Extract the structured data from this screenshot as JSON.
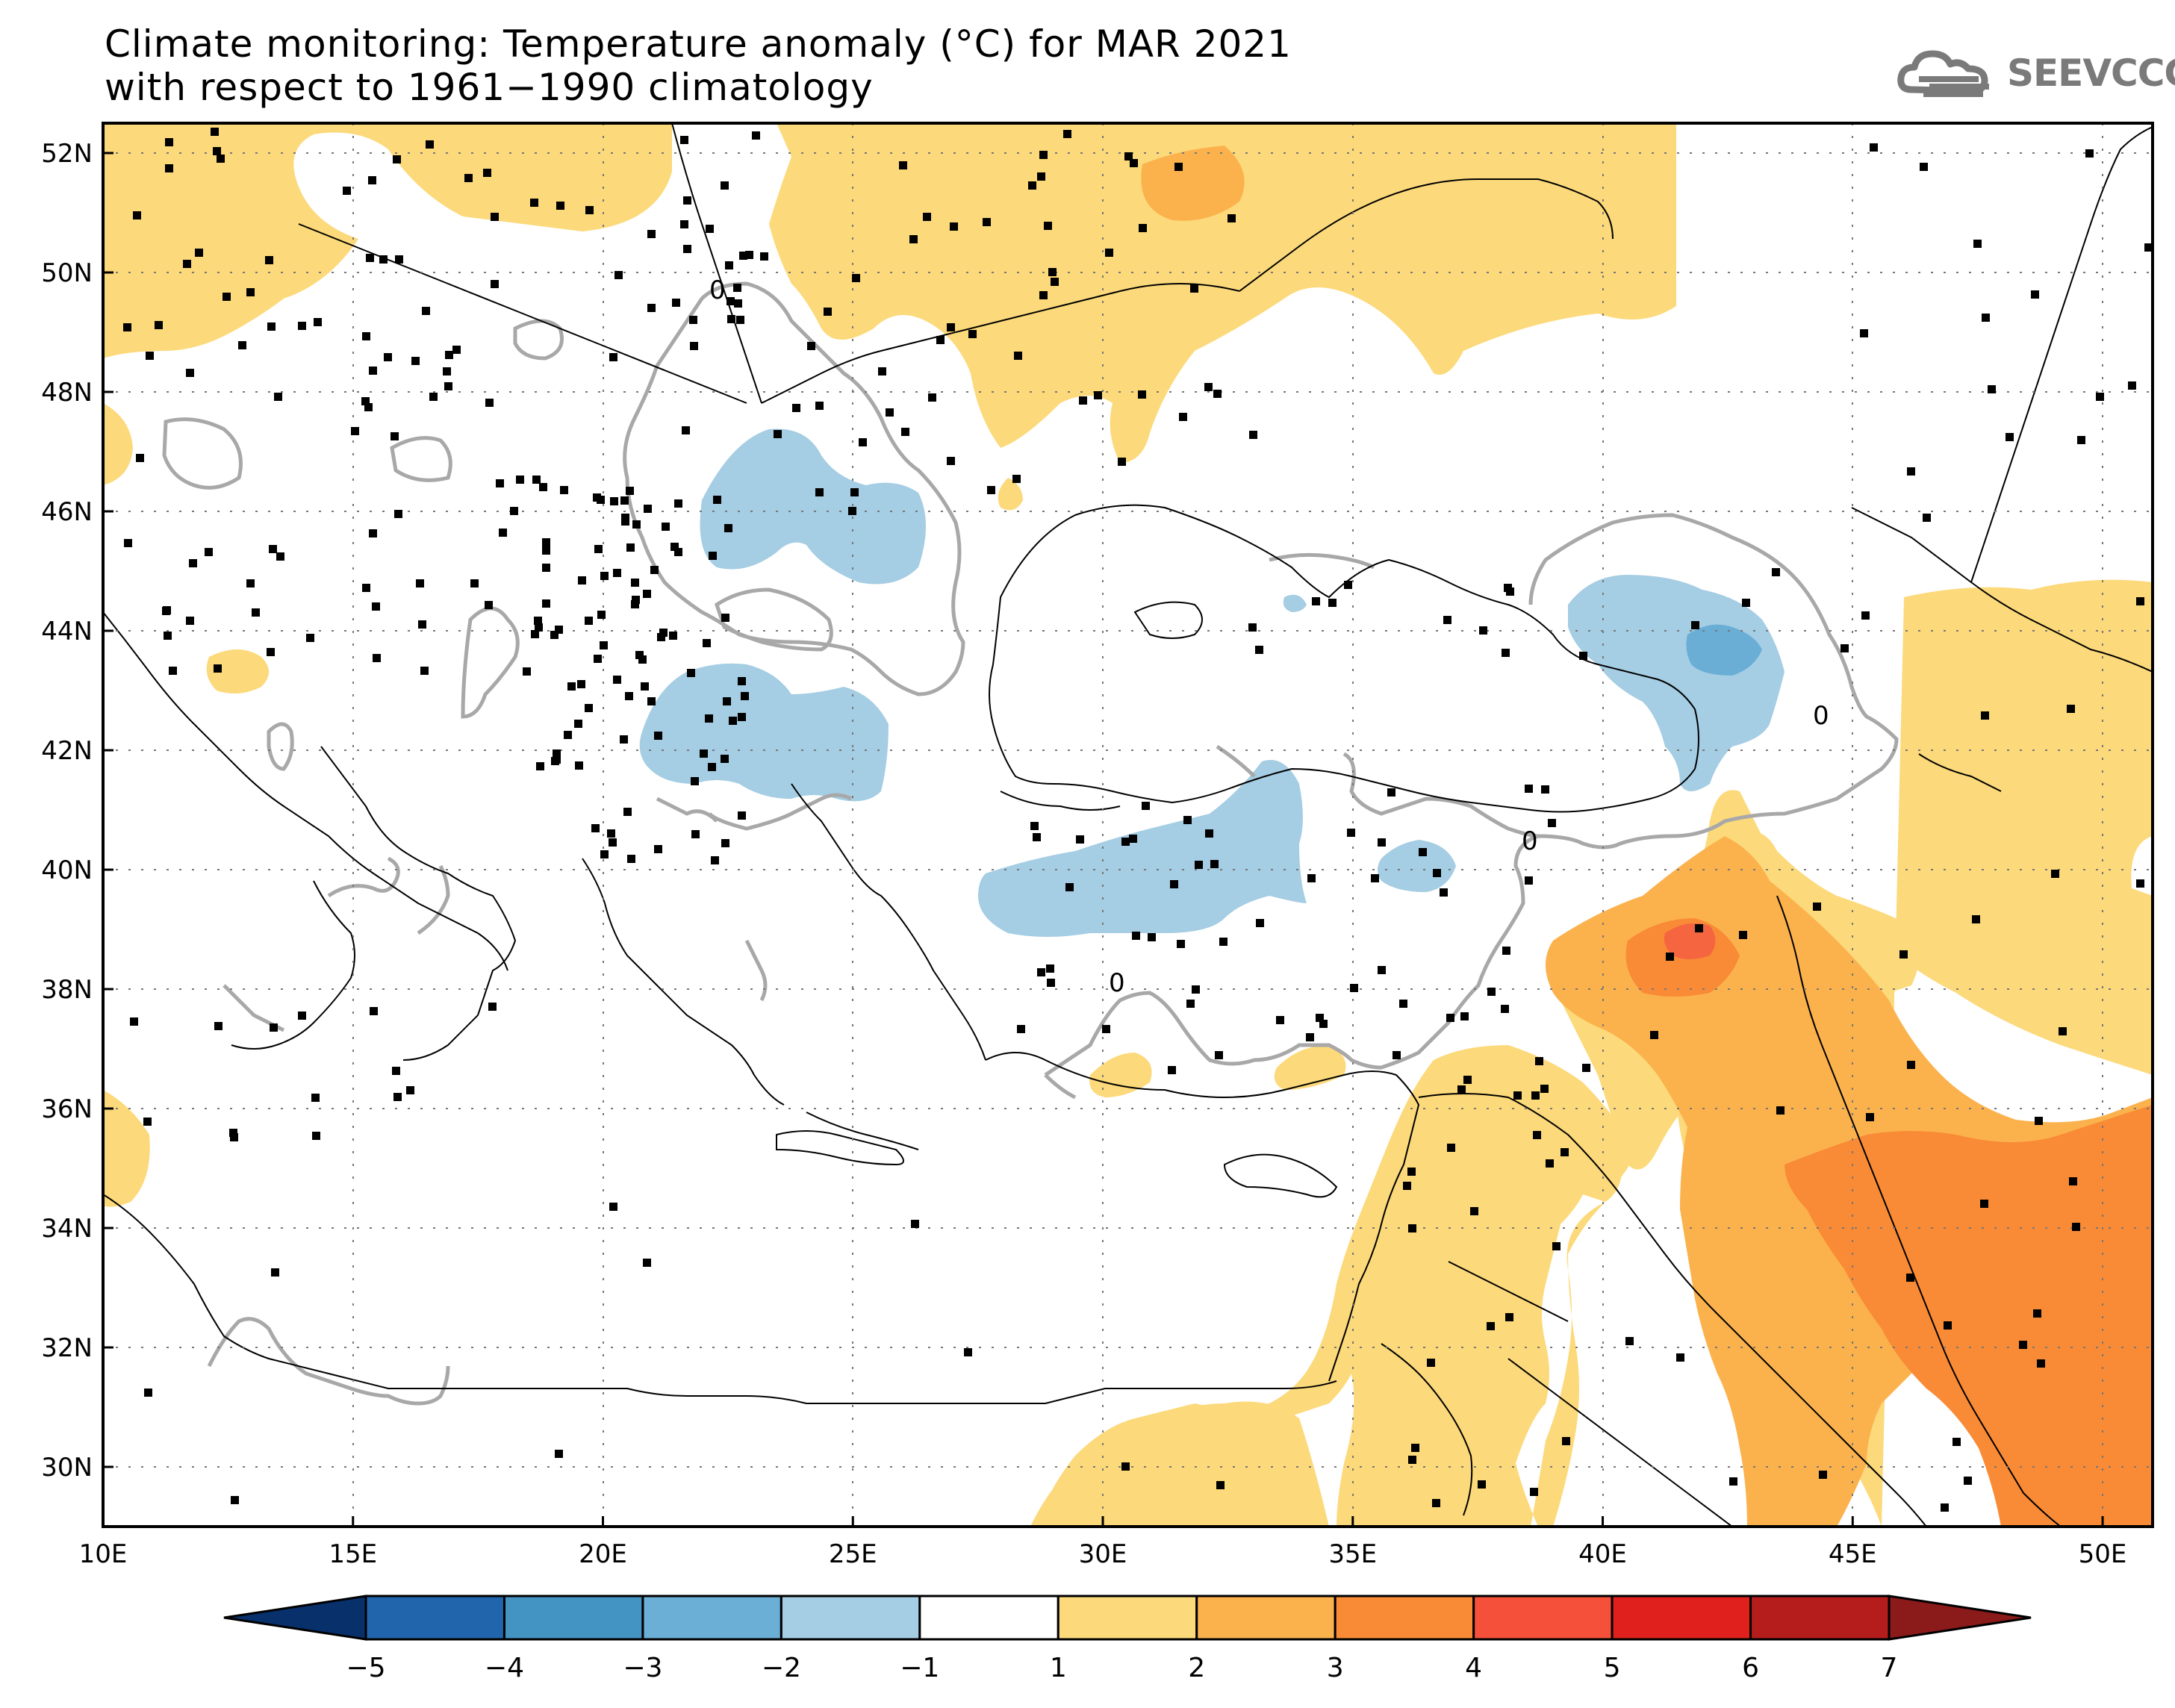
{
  "title": {
    "line1": "Climate monitoring: Temperature anomaly (°C) for MAR 2021",
    "line2": "with respect to 1961−1990 climatology"
  },
  "logo": {
    "text": "SEEVCCC",
    "icon": "cloud-icon",
    "color": "#7a7a7a"
  },
  "map": {
    "lon_range": [
      10,
      51
    ],
    "lat_range": [
      29,
      52.5
    ],
    "lon_ticks": [
      "10E",
      "15E",
      "20E",
      "25E",
      "30E",
      "35E",
      "40E",
      "45E",
      "50E"
    ],
    "lon_tick_values": [
      10,
      15,
      20,
      25,
      30,
      35,
      40,
      45,
      50
    ],
    "lat_ticks": [
      "52N",
      "50N",
      "48N",
      "46N",
      "44N",
      "42N",
      "40N",
      "38N",
      "36N",
      "34N",
      "32N",
      "30N"
    ],
    "lat_tick_values": [
      52,
      50,
      48,
      46,
      44,
      42,
      40,
      38,
      36,
      34,
      32,
      30
    ],
    "contour_label": "0",
    "colors": {
      "warm1": "#fcd97a",
      "warm2": "#fbb24d",
      "warm3": "#f98b36",
      "warm4": "#f56640",
      "cool1": "#a5cde3",
      "cool2": "#6aaed6",
      "coast": "#000000",
      "zero_contour": "#a8a8a8"
    }
  },
  "colorbar": {
    "labels": [
      "−5",
      "−4",
      "−3",
      "−2",
      "−1",
      "1",
      "2",
      "3",
      "4",
      "5",
      "6",
      "7"
    ],
    "colors": [
      "#08306b",
      "#2166ac",
      "#4393c3",
      "#6baed6",
      "#a5cde3",
      "#ffffff",
      "#fcd97a",
      "#fbb24d",
      "#f98b36",
      "#f5503a",
      "#e0201c",
      "#b51c1c",
      "#8b1a1a"
    ]
  }
}
